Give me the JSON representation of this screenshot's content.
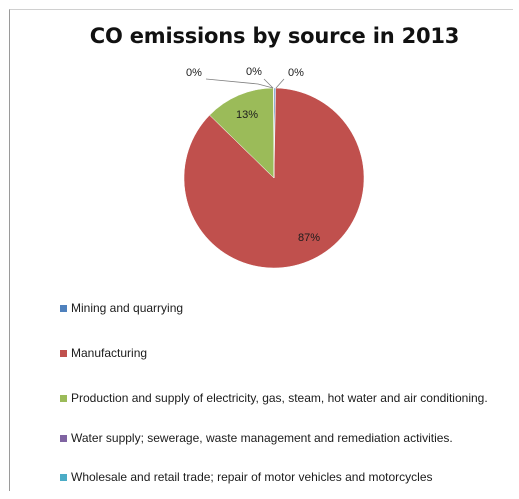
{
  "chart_data": {
    "type": "pie",
    "title": "CO emissions by source in 2013",
    "categories": [
      "Mining and quarrying",
      "Manufacturing",
      "Production and supply of electricity, gas, steam, hot water and air conditioning.",
      "Water supply; sewerage, waste management and remediation activities.",
      "Wholesale and retail trade; repair of motor vehicles and motorcycles"
    ],
    "values": [
      0.3,
      87,
      12.6,
      0.05,
      0.05
    ],
    "data_labels": [
      "0%",
      "87%",
      "13%",
      "0%",
      "0%"
    ],
    "colors": [
      "#4f81bd",
      "#c0504d",
      "#9bbb59",
      "#8064a2",
      "#4bacc6"
    ],
    "legend_position": "bottom"
  }
}
